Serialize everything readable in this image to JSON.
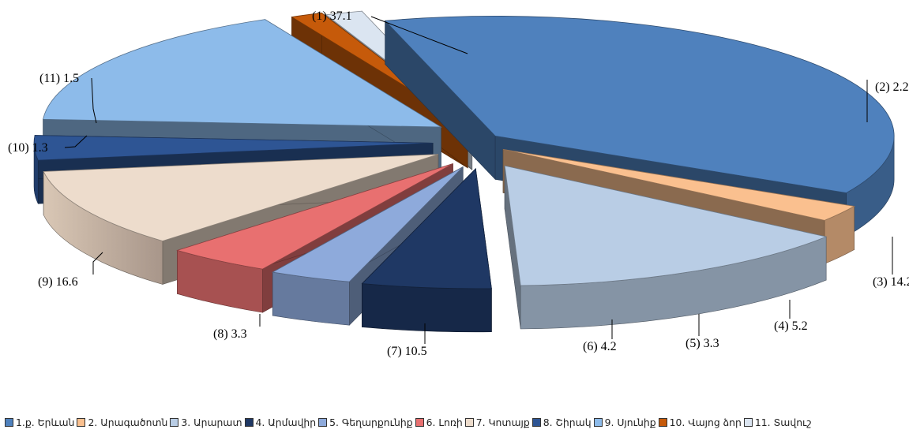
{
  "chart_data": {
    "type": "pie",
    "style": "3d-exploded",
    "legend_position": "bottom",
    "slices": [
      {
        "id": 1,
        "legend": "1.ք. Երևան",
        "label": "(1) 37.1",
        "value": 37.1,
        "color": "#4f81bd"
      },
      {
        "id": 2,
        "legend": "2. Արագածոտն",
        "label": "(2) 2.2",
        "value": 2.2,
        "color": "#fac08f"
      },
      {
        "id": 3,
        "legend": "3. Արարատ",
        "label": "(3) 14.2",
        "value": 14.2,
        "color": "#b9cde5"
      },
      {
        "id": 4,
        "legend": "4. Արմավիր",
        "label": "(4) 5.2",
        "value": 5.2,
        "color": "#1f3864"
      },
      {
        "id": 5,
        "legend": "5. Գեղարքունիք",
        "label": "(5) 3.3",
        "value": 3.3,
        "color": "#8eaadb"
      },
      {
        "id": 6,
        "legend": "6. Լոռի",
        "label": "(6) 4.2",
        "value": 4.2,
        "color": "#e87070"
      },
      {
        "id": 7,
        "legend": "7. Կոտայք",
        "label": "(7) 10.5",
        "value": 10.5,
        "color": "#eddccc"
      },
      {
        "id": 8,
        "legend": "8. Շիրակ",
        "label": "(8) 3.3",
        "value": 3.3,
        "color": "#2e5594"
      },
      {
        "id": 9,
        "legend": "9. Սյունիք",
        "label": "(9) 16.6",
        "value": 16.6,
        "color": "#8dbbea"
      },
      {
        "id": 10,
        "legend": "10. Վայոց ձոր",
        "label": "(10) 1.3",
        "value": 1.3,
        "color": "#c65a0a"
      },
      {
        "id": 11,
        "legend": "11. Տավուշ",
        "label": "(11) 1.5",
        "value": 1.5,
        "color": "#dbe5f1"
      }
    ]
  }
}
